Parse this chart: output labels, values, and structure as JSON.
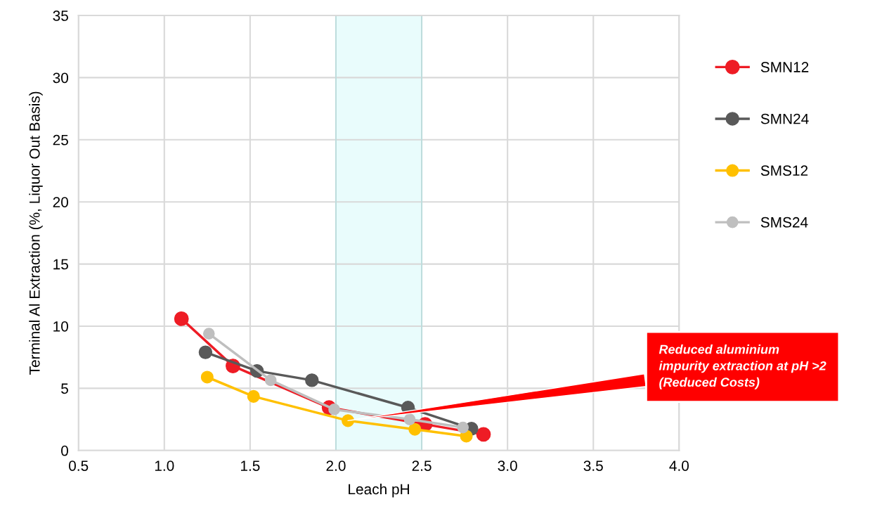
{
  "chart_data": {
    "type": "line",
    "xlabel": "Leach pH",
    "ylabel": "Terminal Al Extraction (%, Liquor Out Basis)",
    "xlim": [
      0.5,
      4.0
    ],
    "xticks": [
      {
        "value": 0.5,
        "label": "0.5"
      },
      {
        "value": 1.0,
        "label": "1.0"
      },
      {
        "value": 1.5,
        "label": "1.5"
      },
      {
        "value": 2.0,
        "label": "2.0"
      },
      {
        "value": 2.5,
        "label": "2.5"
      },
      {
        "value": 3.0,
        "label": "3.0"
      },
      {
        "value": 3.5,
        "label": "3.5"
      },
      {
        "value": 4.0,
        "label": "4.0"
      }
    ],
    "ylim": [
      0,
      35
    ],
    "yticks": [
      0,
      5,
      10,
      15,
      20,
      25,
      30,
      35
    ],
    "grid": true,
    "legend": "right",
    "marker": "circle",
    "line_style": "solid",
    "series": [
      {
        "name": "SMN12",
        "color": "#ee1c25",
        "x": [
          1.1,
          1.4,
          1.96,
          2.52,
          2.86
        ],
        "values": [
          10.6,
          6.8,
          3.45,
          2.1,
          1.3
        ]
      },
      {
        "name": "SMN24",
        "color": "#595959",
        "x": [
          1.24,
          1.54,
          1.86,
          2.42,
          2.79
        ],
        "values": [
          7.9,
          6.4,
          5.65,
          3.45,
          1.75
        ]
      },
      {
        "name": "SMS12",
        "color": "#ffc000",
        "x": [
          1.25,
          1.52,
          2.07,
          2.46,
          2.76
        ],
        "values": [
          5.9,
          4.35,
          2.4,
          1.7,
          1.15
        ]
      },
      {
        "name": "SMS24",
        "color": "#bfbfbf",
        "x": [
          1.26,
          1.62,
          1.99,
          2.43,
          2.74
        ],
        "values": [
          9.4,
          5.65,
          3.3,
          2.5,
          1.85
        ]
      }
    ],
    "bands": [
      {
        "axis": "x",
        "from": 2.0,
        "to": 2.5,
        "color": "#e0fbfb"
      }
    ],
    "annotations": [
      {
        "text": "Reduced aluminium\nimpurity extraction at pH >2\n(Reduced Costs)",
        "x": 2.07,
        "y": 2.4
      }
    ]
  }
}
